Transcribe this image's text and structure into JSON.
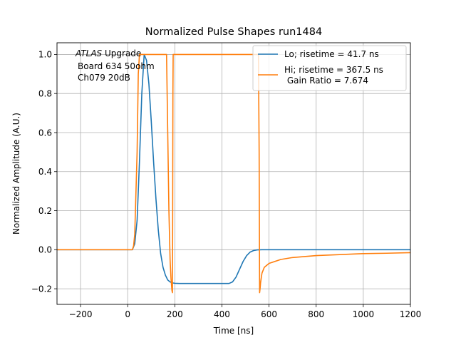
{
  "chart_data": {
    "type": "line",
    "title": "Normalized Pulse Shapes run1484",
    "xlabel": "Time [ns]",
    "ylabel": "Normalized Amplitude (A.U.)",
    "xlim": [
      -300,
      1200
    ],
    "ylim": [
      -0.28,
      1.06
    ],
    "xticks": [
      -200,
      0,
      200,
      400,
      600,
      800,
      1000,
      1200
    ],
    "xtick_labels": [
      "−200",
      "0",
      "200",
      "400",
      "600",
      "800",
      "1000",
      "1200"
    ],
    "yticks": [
      -0.2,
      0.0,
      0.2,
      0.4,
      0.6,
      0.8,
      1.0
    ],
    "ytick_labels": [
      "−0.2",
      "0.0",
      "0.2",
      "0.4",
      "0.6",
      "0.8",
      "1.0"
    ],
    "grid": true,
    "legend_position": "top-right",
    "annotation": {
      "italic": "ATLAS",
      "rest": " Upgrade",
      "line2": "Board 634 50ohm",
      "line3": "Ch079 20dB"
    },
    "series": [
      {
        "name": "Lo; risetime = 41.7 ns",
        "color": "#1f77b4",
        "x": [
          -300,
          20,
          30,
          40,
          50,
          60,
          70,
          80,
          90,
          100,
          110,
          120,
          130,
          140,
          150,
          160,
          170,
          180,
          190,
          200,
          220,
          260,
          300,
          350,
          400,
          430,
          445,
          460,
          475,
          490,
          505,
          520,
          535,
          550,
          570,
          600,
          700,
          800,
          1000,
          1200
        ],
        "y": [
          0.0,
          0.0,
          0.03,
          0.15,
          0.45,
          0.8,
          1.0,
          0.97,
          0.85,
          0.66,
          0.45,
          0.26,
          0.1,
          -0.02,
          -0.09,
          -0.13,
          -0.155,
          -0.165,
          -0.17,
          -0.172,
          -0.173,
          -0.173,
          -0.173,
          -0.173,
          -0.173,
          -0.173,
          -0.165,
          -0.14,
          -0.1,
          -0.06,
          -0.03,
          -0.012,
          -0.004,
          -0.001,
          0.0,
          0.0,
          0.0,
          0.0,
          0.0,
          0.0
        ]
      },
      {
        "name": "Hi; risetime = 367.5 ns\n Gain Ratio = 7.674",
        "color": "#ff7f0e",
        "x": [
          -300,
          20,
          25,
          30,
          40,
          45,
          50,
          160,
          165,
          170,
          175,
          180,
          184,
          188,
          190,
          191,
          192,
          193,
          200,
          300,
          400,
          500,
          550,
          555,
          558,
          560,
          562,
          564,
          570,
          580,
          600,
          650,
          700,
          800,
          900,
          1000,
          1100,
          1200
        ],
        "y": [
          0.0,
          0.0,
          0.02,
          0.08,
          0.5,
          0.9,
          1.0,
          1.0,
          1.0,
          0.6,
          0.2,
          -0.05,
          -0.15,
          -0.21,
          -0.22,
          0.2,
          0.8,
          1.0,
          1.0,
          1.0,
          1.0,
          1.0,
          1.0,
          1.0,
          0.5,
          -0.22,
          -0.2,
          -0.17,
          -0.12,
          -0.09,
          -0.07,
          -0.05,
          -0.04,
          -0.03,
          -0.025,
          -0.02,
          -0.018,
          -0.015
        ]
      }
    ]
  }
}
